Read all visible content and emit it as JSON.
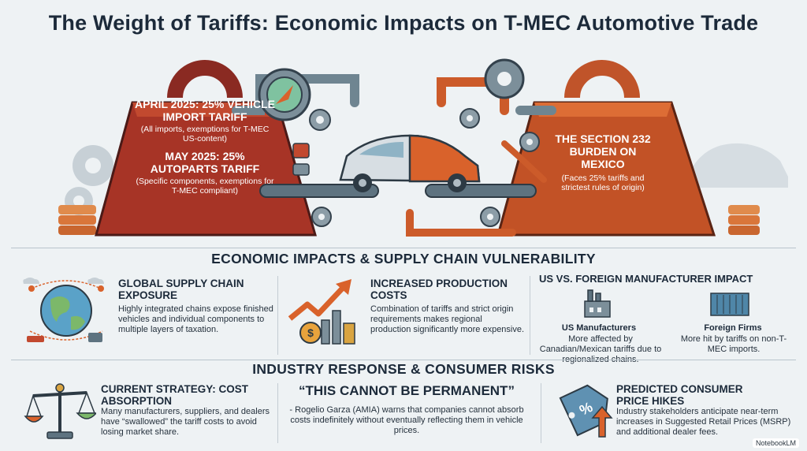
{
  "title": "The Weight of Tariffs: Economic Impacts on T-MEC Automotive Trade",
  "hero": {
    "left_weight": {
      "april_head": "APRIL 2025: 25% VEHICLE IMPORT TARIFF",
      "april_sub": "(All imports, exemptions for T-MEC US-content)",
      "may_head": "MAY 2025: 25% AUTOPARTS TARIFF",
      "may_sub": "(Specific components, exemptions for T-MEC compliant)"
    },
    "right_weight": {
      "head": "THE SECTION 232 BURDEN ON MEXICO",
      "sub": "(Faces 25% tariffs and strictest rules of origin)"
    },
    "icons": [
      "weight-icon",
      "gear-icon",
      "compass-icon",
      "car-icon",
      "conveyor-icon",
      "pipe-icon",
      "robot-arm-icon",
      "coin-stack-icon"
    ],
    "colors": {
      "weight": "#b03a2e",
      "weight_dark": "#7d1f1d",
      "orange": "#d9622b",
      "steel": "#5e7380"
    }
  },
  "section1": {
    "heading": "ECONOMIC IMPACTS & SUPPLY CHAIN VULNERABILITY",
    "global": {
      "title": "GLOBAL SUPPLY CHAIN EXPOSURE",
      "body": "Highly integrated chains expose finished vehicles and individual components to multiple layers of taxation."
    },
    "costs": {
      "title": "INCREASED PRODUCTION COSTS",
      "body": "Combination of tariffs and strict origin requirements makes regional production significantly more expensive."
    },
    "us_vs_foreign": {
      "title": "US VS. FOREIGN MANUFACTURER IMPACT",
      "us_label": "US Manufacturers",
      "us_body": "More affected by Canadian/Mexican tariffs due to regionalized chains.",
      "foreign_label": "Foreign Firms",
      "foreign_body": "More hit by tariffs on non-T-MEC imports."
    }
  },
  "section2": {
    "heading": "INDUSTRY RESPONSE & CONSUMER RISKS",
    "strategy": {
      "title": "CURRENT STRATEGY: COST ABSORPTION",
      "body": "Many manufacturers, suppliers, and dealers have “swallowed” the tariff costs to avoid losing market share."
    },
    "quote": {
      "mark": "“",
      "head": "“THIS CANNOT BE PERMANENT”",
      "body": "- Rogelio Garza (AMIA) warns that companies cannot absorb costs indefinitely without eventually reflecting them in vehicle prices."
    },
    "prices": {
      "title": "PREDICTED CONSUMER PRICE HIKES",
      "body": "Industry stakeholders anticipate near-term increases in Suggested Retail Prices (MSRP) and additional dealer fees.",
      "tag_symbol": "%"
    }
  },
  "footer": {
    "watermark": "NotebookLM"
  }
}
